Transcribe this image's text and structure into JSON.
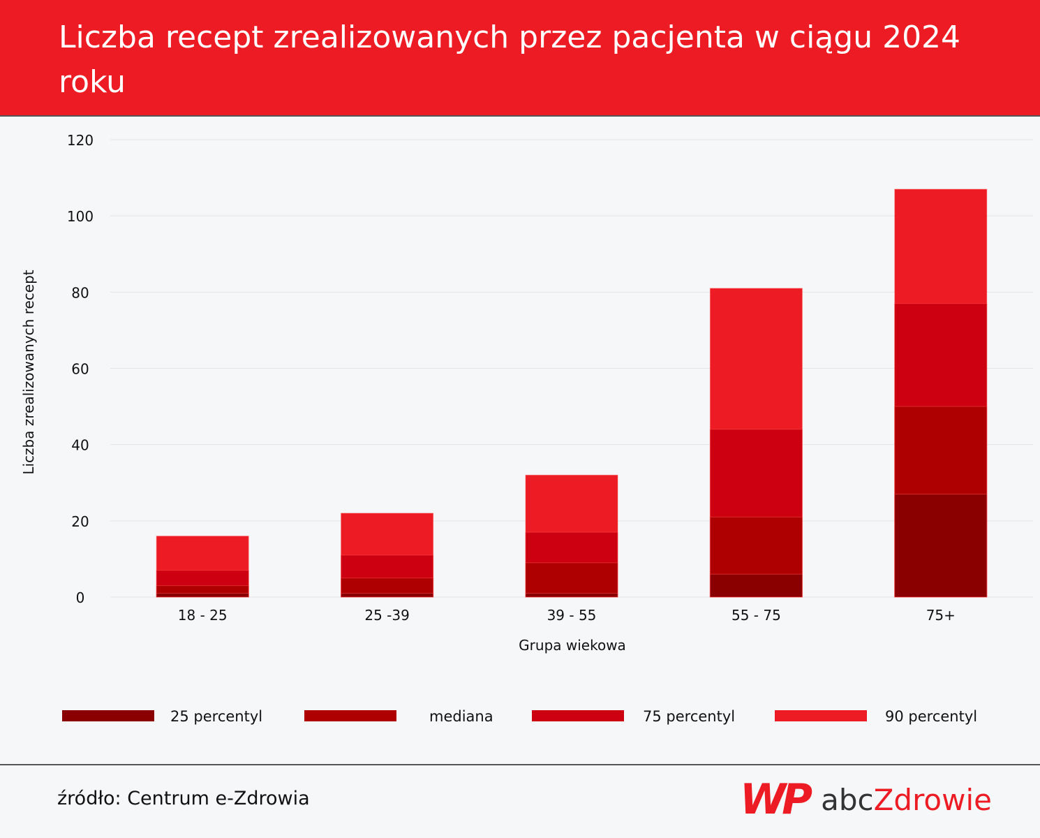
{
  "header": {
    "title": "Liczba recept zrealizowanych przez pacjenta w ciągu 2024 roku"
  },
  "chart_data": {
    "type": "bar",
    "mode": "overlapping",
    "categories": [
      "18 - 25",
      "25 -39",
      "39 - 55",
      "55 - 75",
      "75+"
    ],
    "series": [
      {
        "name": "25 percentyl",
        "color": "#8a0000",
        "values": [
          1,
          1,
          1,
          6,
          27
        ]
      },
      {
        "name": "mediana",
        "color": "#ae0000",
        "values": [
          3,
          5,
          9,
          21,
          50
        ]
      },
      {
        "name": "75 percentyl",
        "color": "#cc0010",
        "values": [
          7,
          11,
          17,
          44,
          77
        ]
      },
      {
        "name": "90 percentyl",
        "color": "#ed1c24",
        "values": [
          16,
          22,
          32,
          81,
          107
        ]
      }
    ],
    "xlabel": "Grupa wiekowa",
    "ylabel": "Liczba zrealizowanych recept",
    "ylim": [
      0,
      120
    ],
    "yticks": [
      "0",
      "20",
      "40",
      "60",
      "80",
      "100",
      "120"
    ],
    "grid": true,
    "legend": "bottom"
  },
  "footer": {
    "source": "źródło: Centrum e-Zdrowia",
    "logo_wp": "WP",
    "logo_abc": "abc",
    "logo_z": "Zdrowie"
  }
}
